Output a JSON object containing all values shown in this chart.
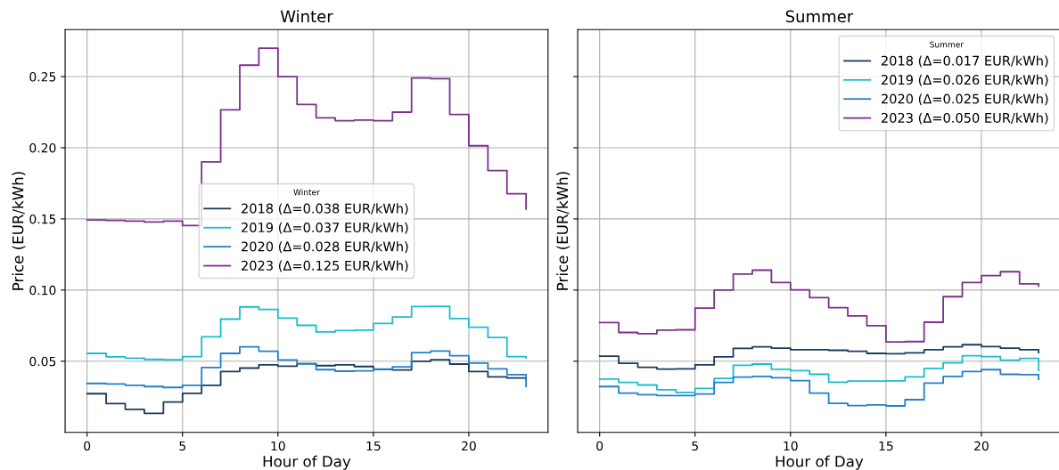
{
  "chart_data": [
    {
      "type": "step",
      "title": "Winter",
      "xlabel": "Hour of Day",
      "ylabel": "Price (EUR/kWh)",
      "legend_title": "Winter",
      "legend": "center",
      "grid": true,
      "x": [
        0,
        1,
        2,
        3,
        4,
        5,
        6,
        7,
        8,
        9,
        10,
        11,
        12,
        13,
        14,
        15,
        16,
        17,
        18,
        19,
        20,
        21,
        22,
        23
      ],
      "xlim": [
        -1.15,
        24.15
      ],
      "xticks": [
        0,
        5,
        10,
        15,
        20
      ],
      "ylim": [
        0.0,
        0.283
      ],
      "yticks": [
        0.05,
        {
          "value": 0.1,
          "label": "0.10"
        },
        0.15,
        {
          "value": 0.2,
          "label": "0.20"
        },
        0.25
      ],
      "series": [
        {
          "name": "2018 (Δ=0.038 EUR/kWh)",
          "color": "#1b3a5c",
          "values": [
            0.0272,
            0.0202,
            0.0162,
            0.0134,
            0.0213,
            0.0274,
            0.0331,
            0.0428,
            0.0452,
            0.0474,
            0.0465,
            0.0482,
            0.0469,
            0.0474,
            0.0463,
            0.0443,
            0.0439,
            0.05,
            0.0511,
            0.048,
            0.0428,
            0.039,
            0.0382,
            0.0368
          ]
        },
        {
          "name": "2019 (Δ=0.037 EUR/kWh)",
          "color": "#17becf",
          "values": [
            0.0555,
            0.0531,
            0.0522,
            0.0513,
            0.0511,
            0.0533,
            0.0671,
            0.0796,
            0.0882,
            0.0864,
            0.0803,
            0.0752,
            0.0706,
            0.0715,
            0.0719,
            0.0765,
            0.0811,
            0.0884,
            0.0886,
            0.08,
            0.0739,
            0.0667,
            0.0533,
            0.0524
          ]
        },
        {
          "name": "2020 (Δ=0.028 EUR/kWh)",
          "color": "#1f7fd1",
          "values": [
            0.0344,
            0.034,
            0.0331,
            0.0322,
            0.0316,
            0.0331,
            0.0456,
            0.0555,
            0.0601,
            0.057,
            0.0509,
            0.0482,
            0.0441,
            0.043,
            0.0432,
            0.0445,
            0.0461,
            0.0561,
            0.0572,
            0.0539,
            0.0487,
            0.0447,
            0.0406,
            0.0322
          ]
        },
        {
          "name": "2023 (Δ=0.125 EUR/kWh)",
          "color": "#7e2f8e",
          "values": [
            0.1493,
            0.1489,
            0.1485,
            0.1478,
            0.1485,
            0.1453,
            0.19,
            0.2267,
            0.258,
            0.27,
            0.25,
            0.2304,
            0.221,
            0.219,
            0.2195,
            0.219,
            0.225,
            0.249,
            0.2485,
            0.2234,
            0.2014,
            0.184,
            0.1677,
            0.157
          ]
        }
      ]
    },
    {
      "type": "step",
      "title": "Summer",
      "xlabel": "Hour of Day",
      "ylabel": "Price (EUR/kWh)",
      "legend_title": "Summer",
      "legend": "top right",
      "grid": true,
      "tick_labels": "x",
      "x": [
        0,
        1,
        2,
        3,
        4,
        5,
        6,
        7,
        8,
        9,
        10,
        11,
        12,
        13,
        14,
        15,
        16,
        17,
        18,
        19,
        20,
        21,
        22,
        23
      ],
      "xlim": [
        -1.15,
        24.15
      ],
      "xticks": [
        0,
        5,
        10,
        15,
        20
      ],
      "ylim": [
        0.0,
        0.283
      ],
      "yticks": [
        {
          "value": 0.05,
          "label": null
        },
        {
          "value": 0.1,
          "label": null
        },
        {
          "value": 0.15,
          "label": null
        },
        {
          "value": 0.2,
          "label": null
        },
        {
          "value": 0.25,
          "label": null
        }
      ],
      "series": [
        {
          "name": "2018 (Δ=0.017 EUR/kWh)",
          "color": "#1b3a5c",
          "values": [
            0.0535,
            0.0485,
            0.0458,
            0.0445,
            0.0447,
            0.0474,
            0.0531,
            0.059,
            0.0601,
            0.0592,
            0.0581,
            0.0581,
            0.0577,
            0.057,
            0.0555,
            0.0553,
            0.0559,
            0.0581,
            0.0601,
            0.0616,
            0.0603,
            0.0592,
            0.0581,
            0.0561
          ]
        },
        {
          "name": "2019 (Δ=0.026 EUR/kWh)",
          "color": "#17becf",
          "values": [
            0.0375,
            0.0351,
            0.0333,
            0.03,
            0.0281,
            0.0309,
            0.0379,
            0.0471,
            0.048,
            0.0443,
            0.0434,
            0.0408,
            0.0353,
            0.036,
            0.036,
            0.0362,
            0.039,
            0.045,
            0.0489,
            0.0539,
            0.0533,
            0.0507,
            0.052,
            0.0434
          ]
        },
        {
          "name": "2020 (Δ=0.025 EUR/kWh)",
          "color": "#1f7fd1",
          "values": [
            0.0322,
            0.0276,
            0.0265,
            0.0259,
            0.0259,
            0.027,
            0.0351,
            0.0388,
            0.0393,
            0.0384,
            0.0364,
            0.0276,
            0.0204,
            0.0189,
            0.0193,
            0.0186,
            0.023,
            0.0346,
            0.0393,
            0.0428,
            0.0441,
            0.0408,
            0.0406,
            0.0373
          ]
        },
        {
          "name": "2023 (Δ=0.050 EUR/kWh)",
          "color": "#7e2f8e",
          "values": [
            0.0772,
            0.0702,
            0.0693,
            0.0719,
            0.0721,
            0.0873,
            0.1,
            0.1112,
            0.114,
            0.1053,
            0.1002,
            0.0947,
            0.0877,
            0.0818,
            0.075,
            0.0636,
            0.0638,
            0.0774,
            0.0954,
            0.1053,
            0.1101,
            0.1129,
            0.1044,
            0.1026
          ]
        }
      ]
    }
  ]
}
